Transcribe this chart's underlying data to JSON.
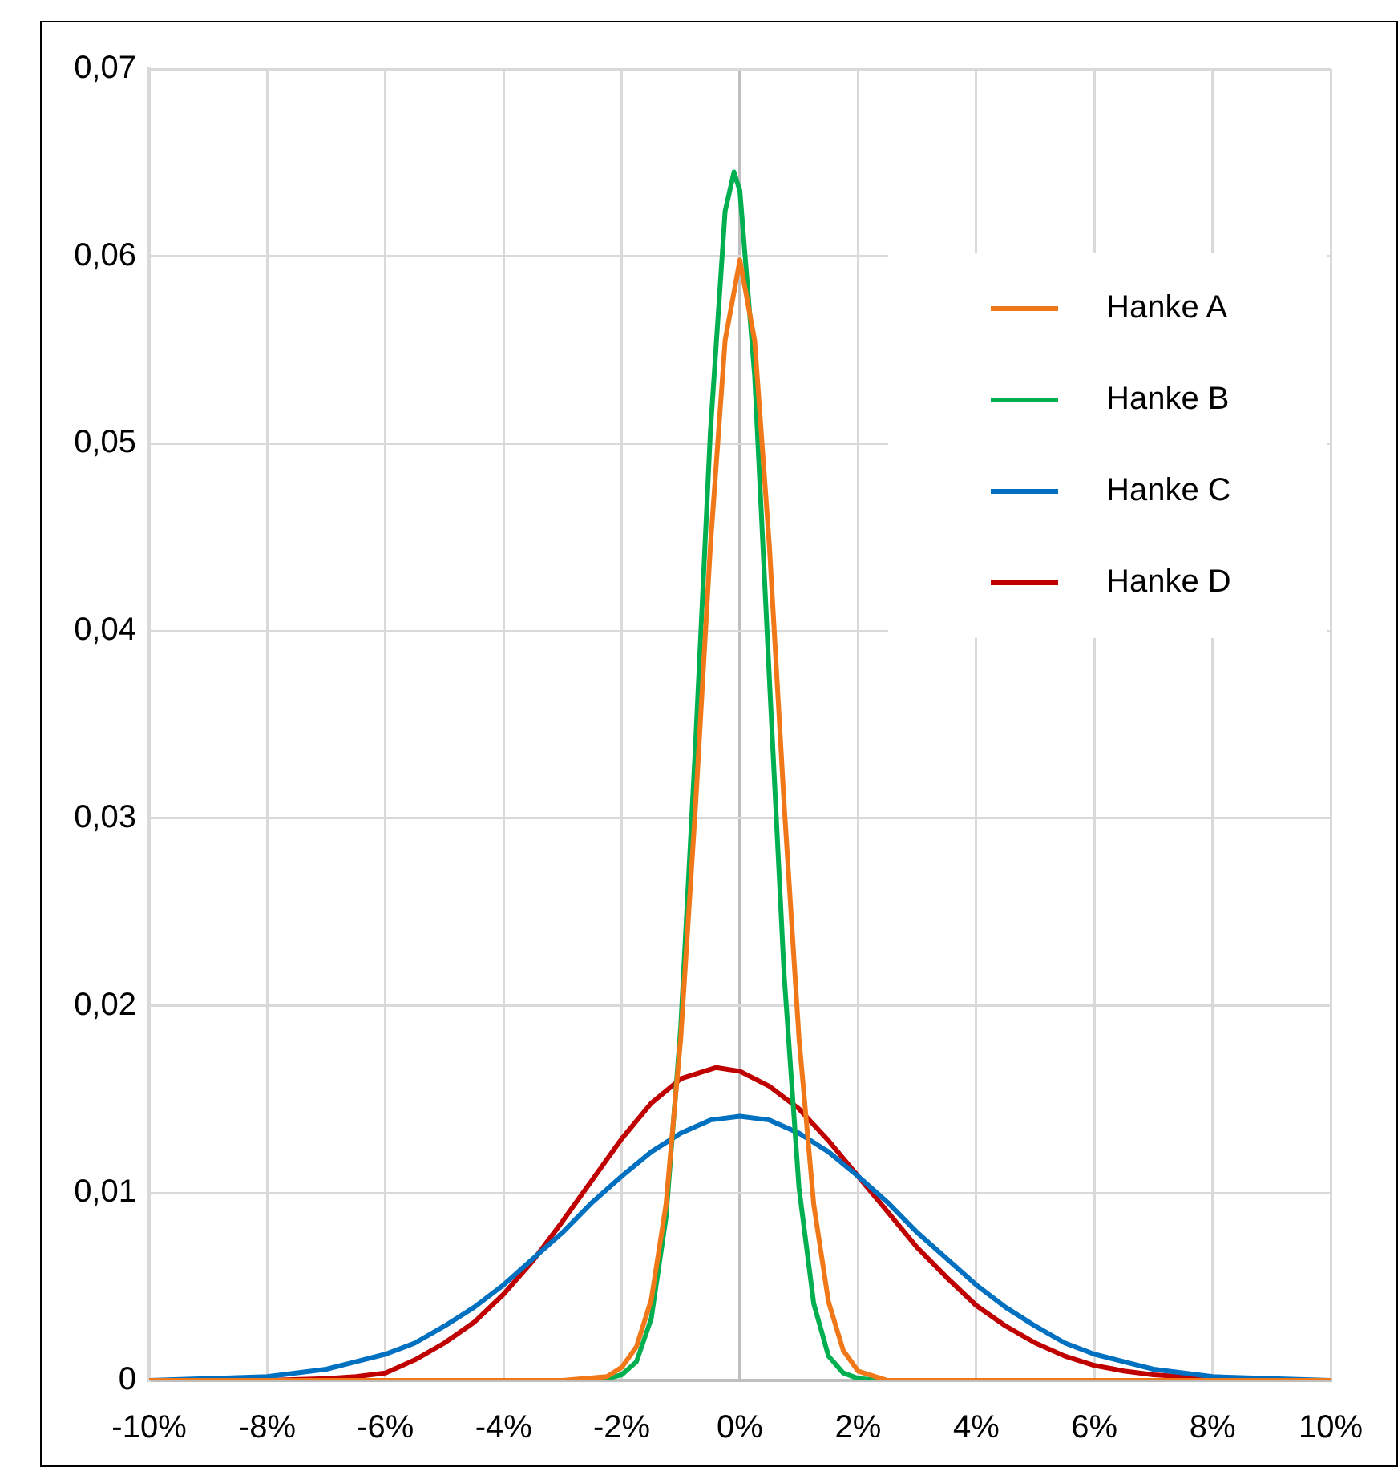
{
  "chart_data": {
    "type": "line",
    "xlim": [
      -10,
      10
    ],
    "ylim": [
      0,
      0.07
    ],
    "xticks": [
      {
        "value": -10,
        "label": "-10%"
      },
      {
        "value": -8,
        "label": "-8%"
      },
      {
        "value": -6,
        "label": "-6%"
      },
      {
        "value": -4,
        "label": "-4%"
      },
      {
        "value": -2,
        "label": "-2%"
      },
      {
        "value": 0,
        "label": "0%"
      },
      {
        "value": 2,
        "label": "2%"
      },
      {
        "value": 4,
        "label": "4%"
      },
      {
        "value": 6,
        "label": "6%"
      },
      {
        "value": 8,
        "label": "8%"
      },
      {
        "value": 10,
        "label": "10%"
      }
    ],
    "yticks": [
      0,
      {
        "value": 0.01,
        "label": "0,01"
      },
      {
        "value": 0.02,
        "label": "0,02"
      },
      {
        "value": 0.03,
        "label": "0,03"
      },
      {
        "value": 0.04,
        "label": "0,04"
      },
      {
        "value": 0.05,
        "label": "0,05"
      },
      {
        "value": 0.06,
        "label": "0,06"
      },
      {
        "value": 0.07,
        "label": "0,07"
      }
    ],
    "grid": true,
    "legend": "top right",
    "marker": "none",
    "line_style": "solid",
    "series": [
      {
        "name": "Hanke A",
        "color": "#f07818",
        "x": [
          -10,
          -3,
          -2.25,
          -2,
          -1.75,
          -1.5,
          -1.25,
          -1,
          -0.75,
          -0.5,
          -0.25,
          0,
          0.25,
          0.5,
          0.75,
          1,
          1.25,
          1.5,
          1.75,
          2,
          2.5,
          10
        ],
        "values": [
          0,
          0,
          0.0002,
          0.0007,
          0.0018,
          0.0043,
          0.0094,
          0.0183,
          0.0307,
          0.0445,
          0.0555,
          0.0598,
          0.0555,
          0.0445,
          0.0307,
          0.0183,
          0.0094,
          0.0042,
          0.0016,
          0.0005,
          0,
          0
        ]
      },
      {
        "name": "Hanke B",
        "color": "#00b050",
        "x": [
          -10,
          -2.5,
          -2.25,
          -2,
          -1.75,
          -1.5,
          -1.25,
          -1,
          -0.75,
          -0.5,
          -0.25,
          -0.1,
          0,
          0.25,
          0.5,
          0.75,
          1,
          1.25,
          1.5,
          1.75,
          2,
          2.5,
          10
        ],
        "values": [
          0,
          0,
          0.0001,
          0.0003,
          0.001,
          0.0033,
          0.0087,
          0.0189,
          0.034,
          0.0506,
          0.0624,
          0.0645,
          0.0635,
          0.0536,
          0.0374,
          0.0216,
          0.0103,
          0.0041,
          0.0013,
          0.0004,
          0.0001,
          0,
          0
        ]
      },
      {
        "name": "Hanke C",
        "color": "#0070c0",
        "x": [
          -10,
          -9,
          -8,
          -7,
          -6.5,
          -6,
          -5.5,
          -5,
          -4.5,
          -4,
          -3.5,
          -3,
          -2.5,
          -2,
          -1.5,
          -1,
          -0.5,
          0,
          0.5,
          1,
          1.5,
          2,
          2.5,
          3,
          3.5,
          4,
          4.5,
          5,
          5.5,
          6,
          6.5,
          7,
          8,
          9,
          10
        ],
        "values": [
          0,
          0.0001,
          0.0002,
          0.0006,
          0.001,
          0.0014,
          0.002,
          0.0029,
          0.0039,
          0.0051,
          0.0065,
          0.0079,
          0.0095,
          0.0109,
          0.0122,
          0.0132,
          0.0139,
          0.0141,
          0.0139,
          0.0132,
          0.0122,
          0.0109,
          0.0095,
          0.0079,
          0.0065,
          0.0051,
          0.0039,
          0.0029,
          0.002,
          0.0014,
          0.001,
          0.0006,
          0.0002,
          0.0001,
          0
        ]
      },
      {
        "name": "Hanke D",
        "color": "#c00000",
        "x": [
          -10,
          -8,
          -7,
          -6.5,
          -6,
          -5.5,
          -5,
          -4.5,
          -4,
          -3.5,
          -3,
          -2.5,
          -2,
          -1.5,
          -1,
          -0.4,
          0,
          0.5,
          1,
          1.5,
          2,
          2.5,
          3,
          3.5,
          4,
          4.5,
          5,
          5.5,
          6,
          6.5,
          7,
          8,
          9,
          10
        ],
        "values": [
          0,
          0,
          0.0001,
          0.0002,
          0.0004,
          0.0011,
          0.002,
          0.0031,
          0.0046,
          0.0064,
          0.0085,
          0.0107,
          0.0129,
          0.0148,
          0.0161,
          0.0167,
          0.0165,
          0.0157,
          0.0145,
          0.0128,
          0.0109,
          0.009,
          0.0071,
          0.0055,
          0.004,
          0.0029,
          0.002,
          0.0013,
          0.0008,
          0.0005,
          0.0003,
          0.0001,
          0,
          0
        ]
      }
    ]
  }
}
